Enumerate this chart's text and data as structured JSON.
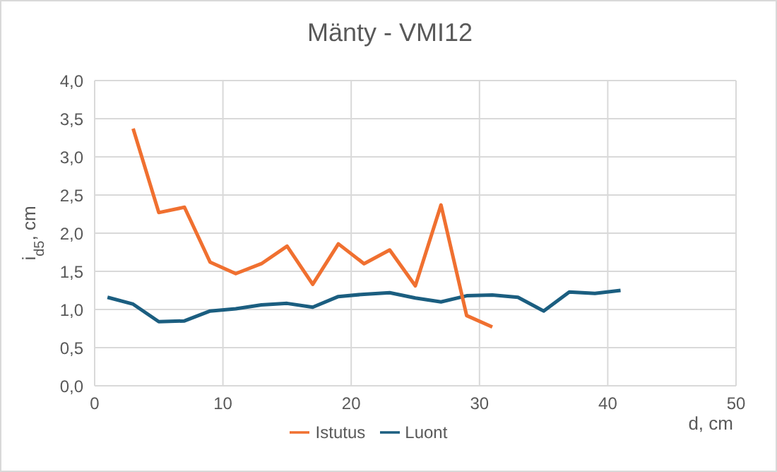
{
  "chart_data": {
    "type": "line",
    "title": "Mänty - VMI12",
    "xlabel": "d, cm",
    "ylabel": "i$_{d5}$, cm",
    "series": [
      {
        "name": "Luont",
        "color": "#1b5e80",
        "x": [
          1,
          3,
          5,
          7,
          9,
          11,
          13,
          15,
          17,
          19,
          21,
          23,
          25,
          27,
          29,
          31,
          33,
          35,
          37,
          39,
          41
        ],
        "values": [
          1.16,
          1.07,
          0.84,
          0.85,
          0.98,
          1.01,
          1.06,
          1.08,
          1.03,
          1.17,
          1.2,
          1.22,
          1.15,
          1.1,
          1.18,
          1.19,
          1.16,
          0.98,
          1.23,
          1.21,
          1.25
        ]
      },
      {
        "name": "Istutus",
        "color": "#f07030",
        "x": [
          3,
          5,
          7,
          9,
          11,
          13,
          15,
          17,
          19,
          21,
          23,
          25,
          27,
          29,
          31
        ],
        "values": [
          3.37,
          2.27,
          2.34,
          1.62,
          1.47,
          1.6,
          1.83,
          1.33,
          1.86,
          1.6,
          1.78,
          1.31,
          2.37,
          0.92,
          0.77
        ]
      }
    ],
    "xlim": [
      0,
      50
    ],
    "xticks": [
      0,
      10,
      20,
      30,
      40,
      50
    ],
    "ylim": [
      0,
      4
    ],
    "yticks": [
      {
        "value": 0,
        "label": "0,0"
      },
      {
        "value": 0.5,
        "label": "0,5"
      },
      {
        "value": 1,
        "label": "1,0"
      },
      {
        "value": 1.5,
        "label": "1,5"
      },
      {
        "value": 2,
        "label": "2,0"
      },
      {
        "value": 2.5,
        "label": "2,5"
      },
      {
        "value": 3,
        "label": "3,0"
      },
      {
        "value": 3.5,
        "label": "3,5"
      },
      {
        "value": 4,
        "label": "4,0"
      }
    ],
    "grid": true,
    "legend": "bottom",
    "marker": "none",
    "line_style": "solid"
  }
}
